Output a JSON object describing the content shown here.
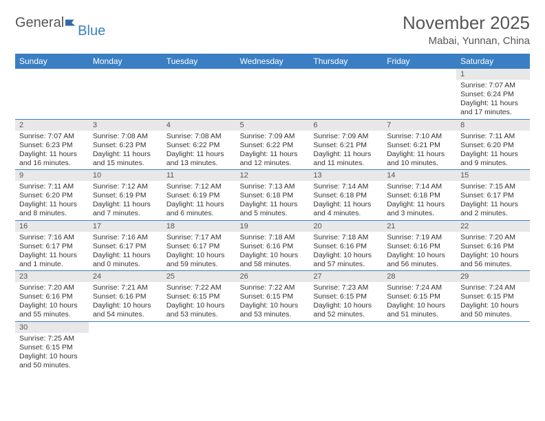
{
  "logo": {
    "part1": "General",
    "part2": "Blue"
  },
  "title": "November 2025",
  "location": "Mabai, Yunnan, China",
  "colors": {
    "header_bg": "#3a7fc4",
    "header_text": "#ffffff",
    "daynum_bg": "#e8e8e8",
    "border": "#3a7fc4",
    "text": "#333333",
    "title_text": "#555555"
  },
  "weekdays": [
    "Sunday",
    "Monday",
    "Tuesday",
    "Wednesday",
    "Thursday",
    "Friday",
    "Saturday"
  ],
  "weeks": [
    [
      null,
      null,
      null,
      null,
      null,
      null,
      {
        "n": "1",
        "sr": "7:07 AM",
        "ss": "6:24 PM",
        "dl": "11 hours and 17 minutes."
      }
    ],
    [
      {
        "n": "2",
        "sr": "7:07 AM",
        "ss": "6:23 PM",
        "dl": "11 hours and 16 minutes."
      },
      {
        "n": "3",
        "sr": "7:08 AM",
        "ss": "6:23 PM",
        "dl": "11 hours and 15 minutes."
      },
      {
        "n": "4",
        "sr": "7:08 AM",
        "ss": "6:22 PM",
        "dl": "11 hours and 13 minutes."
      },
      {
        "n": "5",
        "sr": "7:09 AM",
        "ss": "6:22 PM",
        "dl": "11 hours and 12 minutes."
      },
      {
        "n": "6",
        "sr": "7:09 AM",
        "ss": "6:21 PM",
        "dl": "11 hours and 11 minutes."
      },
      {
        "n": "7",
        "sr": "7:10 AM",
        "ss": "6:21 PM",
        "dl": "11 hours and 10 minutes."
      },
      {
        "n": "8",
        "sr": "7:11 AM",
        "ss": "6:20 PM",
        "dl": "11 hours and 9 minutes."
      }
    ],
    [
      {
        "n": "9",
        "sr": "7:11 AM",
        "ss": "6:20 PM",
        "dl": "11 hours and 8 minutes."
      },
      {
        "n": "10",
        "sr": "7:12 AM",
        "ss": "6:19 PM",
        "dl": "11 hours and 7 minutes."
      },
      {
        "n": "11",
        "sr": "7:12 AM",
        "ss": "6:19 PM",
        "dl": "11 hours and 6 minutes."
      },
      {
        "n": "12",
        "sr": "7:13 AM",
        "ss": "6:18 PM",
        "dl": "11 hours and 5 minutes."
      },
      {
        "n": "13",
        "sr": "7:14 AM",
        "ss": "6:18 PM",
        "dl": "11 hours and 4 minutes."
      },
      {
        "n": "14",
        "sr": "7:14 AM",
        "ss": "6:18 PM",
        "dl": "11 hours and 3 minutes."
      },
      {
        "n": "15",
        "sr": "7:15 AM",
        "ss": "6:17 PM",
        "dl": "11 hours and 2 minutes."
      }
    ],
    [
      {
        "n": "16",
        "sr": "7:16 AM",
        "ss": "6:17 PM",
        "dl": "11 hours and 1 minute."
      },
      {
        "n": "17",
        "sr": "7:16 AM",
        "ss": "6:17 PM",
        "dl": "11 hours and 0 minutes."
      },
      {
        "n": "18",
        "sr": "7:17 AM",
        "ss": "6:17 PM",
        "dl": "10 hours and 59 minutes."
      },
      {
        "n": "19",
        "sr": "7:18 AM",
        "ss": "6:16 PM",
        "dl": "10 hours and 58 minutes."
      },
      {
        "n": "20",
        "sr": "7:18 AM",
        "ss": "6:16 PM",
        "dl": "10 hours and 57 minutes."
      },
      {
        "n": "21",
        "sr": "7:19 AM",
        "ss": "6:16 PM",
        "dl": "10 hours and 56 minutes."
      },
      {
        "n": "22",
        "sr": "7:20 AM",
        "ss": "6:16 PM",
        "dl": "10 hours and 56 minutes."
      }
    ],
    [
      {
        "n": "23",
        "sr": "7:20 AM",
        "ss": "6:16 PM",
        "dl": "10 hours and 55 minutes."
      },
      {
        "n": "24",
        "sr": "7:21 AM",
        "ss": "6:16 PM",
        "dl": "10 hours and 54 minutes."
      },
      {
        "n": "25",
        "sr": "7:22 AM",
        "ss": "6:15 PM",
        "dl": "10 hours and 53 minutes."
      },
      {
        "n": "26",
        "sr": "7:22 AM",
        "ss": "6:15 PM",
        "dl": "10 hours and 53 minutes."
      },
      {
        "n": "27",
        "sr": "7:23 AM",
        "ss": "6:15 PM",
        "dl": "10 hours and 52 minutes."
      },
      {
        "n": "28",
        "sr": "7:24 AM",
        "ss": "6:15 PM",
        "dl": "10 hours and 51 minutes."
      },
      {
        "n": "29",
        "sr": "7:24 AM",
        "ss": "6:15 PM",
        "dl": "10 hours and 50 minutes."
      }
    ],
    [
      {
        "n": "30",
        "sr": "7:25 AM",
        "ss": "6:15 PM",
        "dl": "10 hours and 50 minutes."
      },
      null,
      null,
      null,
      null,
      null,
      null
    ]
  ],
  "labels": {
    "sunrise": "Sunrise:",
    "sunset": "Sunset:",
    "daylight": "Daylight:"
  }
}
